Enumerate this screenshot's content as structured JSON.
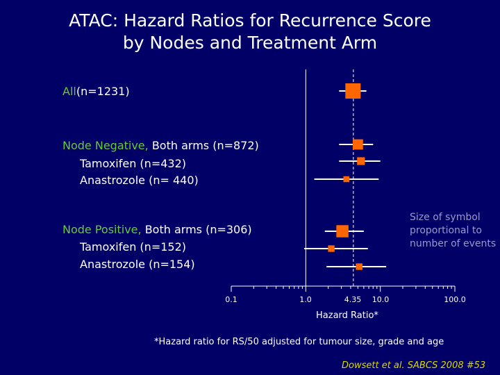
{
  "title_line1": "ATAC: Hazard Ratios for Recurrence Score",
  "title_line2": "by Nodes and Treatment Arm",
  "rows": [
    {
      "green": "All",
      "rest": "(n=1231)",
      "indent": false
    },
    {
      "green": "",
      "rest": "",
      "prefix": "Node Negative,",
      "suffix": " Both arms (n=872)",
      "indent": false
    },
    {
      "rest": "Tamoxifen (n=432)",
      "indent": true
    },
    {
      "rest": "Anastrozole (n= 440)",
      "indent": true
    },
    {
      "prefix": "Node Positive,",
      "suffix": " Both arms (n=306)",
      "indent": false
    },
    {
      "rest": "Tamoxifen (n=152)",
      "indent": true
    },
    {
      "rest": "Anastrozole (n=154)",
      "indent": true
    }
  ],
  "note": "Size of symbol proportional to number of events",
  "xlabel": "Hazard Ratio*",
  "footnote": "*Hazard ratio for RS/50 adjusted for tumour size, grade and age",
  "citation": "Dowsett et al. SABCS 2008 #53",
  "colors": {
    "background": "#000066",
    "marker": "#ff6600",
    "label_green": "#66cc33",
    "note": "#9999cc",
    "citation": "#d9d900"
  },
  "chart_data": {
    "type": "forest",
    "xscale": "log",
    "xlim": [
      0.1,
      100
    ],
    "xticks": [
      "0.1",
      "1.0",
      "4.35",
      "10.0",
      "100.0"
    ],
    "xtick_values": [
      0.1,
      1.0,
      4.35,
      10.0,
      100.0
    ],
    "reference_line": 4.35,
    "null_line": 1.0,
    "points": [
      {
        "label": "All(n=1231)",
        "hr": 4.3,
        "ci": [
          2.8,
          6.5
        ],
        "size": 1.0
      },
      {
        "label": "Node Negative, Both arms (n=872)",
        "hr": 5.0,
        "ci": [
          2.8,
          8.0
        ],
        "size": 0.6
      },
      {
        "label": "Tamoxifen (n=432)",
        "hr": 5.5,
        "ci": [
          2.8,
          10.0
        ],
        "size": 0.4
      },
      {
        "label": "Anastrozole (n= 440)",
        "hr": 3.5,
        "ci": [
          1.3,
          9.5
        ],
        "size": 0.25
      },
      {
        "label": "Node Positive, Both arms (n=306)",
        "hr": 3.1,
        "ci": [
          1.8,
          6.0
        ],
        "size": 0.75
      },
      {
        "label": "Tamoxifen (n=152)",
        "hr": 2.2,
        "ci": [
          0.95,
          6.8
        ],
        "size": 0.3
      },
      {
        "label": "Anastrozole (n=154)",
        "hr": 5.2,
        "ci": [
          1.9,
          12.0
        ],
        "size": 0.3
      }
    ]
  }
}
